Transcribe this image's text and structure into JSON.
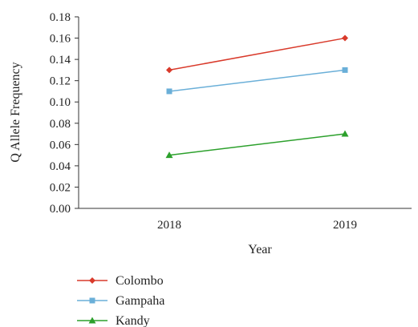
{
  "chart_data": {
    "type": "line",
    "categories": [
      "2018",
      "2019"
    ],
    "series": [
      {
        "name": "Colombo",
        "values": [
          0.13,
          0.16
        ],
        "color": "#d93a2b",
        "marker": "diamond"
      },
      {
        "name": "Gampaha",
        "values": [
          0.11,
          0.13
        ],
        "color": "#6aafd8",
        "marker": "square"
      },
      {
        "name": "Kandy",
        "values": [
          0.05,
          0.07
        ],
        "color": "#2ca02c",
        "marker": "triangle"
      }
    ],
    "xlabel": "Year",
    "ylabel": "Q Allele Frequency",
    "ylim": [
      0,
      0.18
    ],
    "yticks": [
      "0.00",
      "0.02",
      "0.04",
      "0.06",
      "0.08",
      "0.10",
      "0.12",
      "0.14",
      "0.16",
      "0.18"
    ],
    "grid": false,
    "legend_position": "bottom-left"
  }
}
